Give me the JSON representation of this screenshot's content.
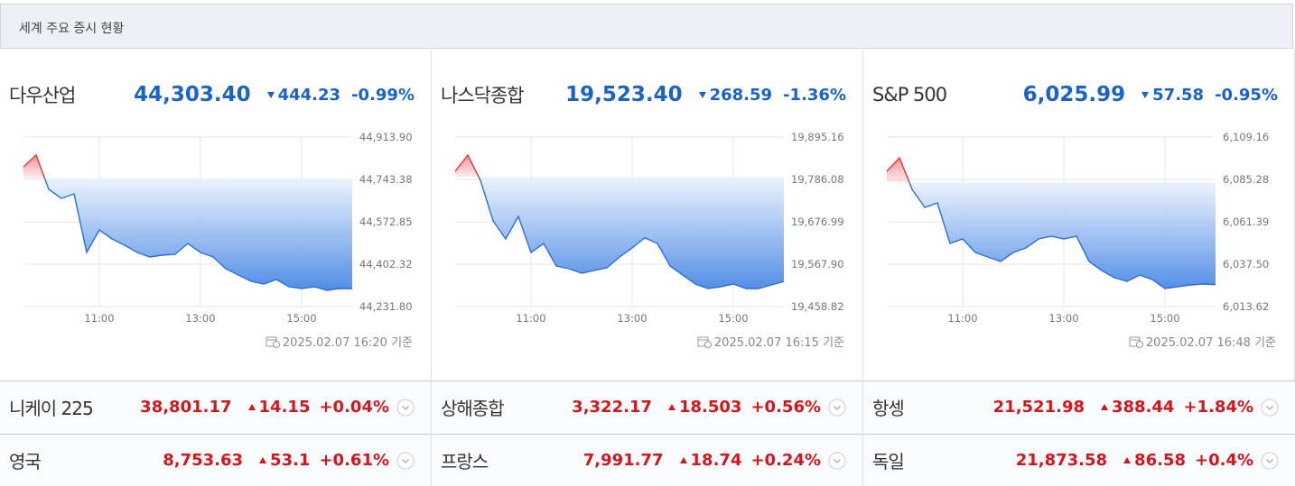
{
  "header": {
    "title": "세계 주요 증시 현황"
  },
  "chart_data": [
    {
      "type": "line",
      "title": "다우산업",
      "last": 44303.4,
      "last_label": "44,303.40",
      "change": -444.23,
      "change_label": "444.23",
      "change_pct_label": "-0.99%",
      "timestamp": "2025.02.07 16:20 기준",
      "x": [
        "09:30",
        "09:45",
        "10:00",
        "10:15",
        "10:30",
        "10:45",
        "11:00",
        "11:15",
        "11:30",
        "11:45",
        "12:00",
        "12:15",
        "12:30",
        "12:45",
        "13:00",
        "13:15",
        "13:30",
        "13:45",
        "14:00",
        "14:15",
        "14:30",
        "14:45",
        "15:00",
        "15:15",
        "15:30",
        "15:45",
        "16:00"
      ],
      "series": [
        {
          "color": "#2a6fdc",
          "above_color": "#e8343a",
          "values": [
            44794.2,
            44841.3,
            44703.5,
            44667.2,
            44685.3,
            44449.5,
            44540.2,
            44503.9,
            44478.5,
            44449.5,
            44431.4,
            44438.6,
            44442.3,
            44485.8,
            44449.5,
            44431.4,
            44384.2,
            44358.8,
            44333.4,
            44322.5,
            44340.7,
            44311.7,
            44304.4,
            44311.7,
            44297.1,
            44304.4,
            44303.4
          ]
        }
      ],
      "xlim": [
        "09:30",
        "16:00"
      ],
      "xticks": [
        "11:00",
        "13:00",
        "15:00"
      ],
      "ylim": [
        44231.8,
        44913.9
      ],
      "yticks": [
        {
          "value": 44913.9,
          "label": "44,913.90"
        },
        {
          "value": 44743.38,
          "label": "44,743.38"
        },
        {
          "value": 44572.85,
          "label": "44,572.85"
        },
        {
          "value": 44402.32,
          "label": "44,402.32"
        },
        {
          "value": 44231.8,
          "label": "44,231.80"
        }
      ],
      "grid": true
    },
    {
      "type": "line",
      "title": "나스닥종합",
      "last": 19523.4,
      "last_label": "19,523.40",
      "change": -268.59,
      "change_label": "268.59",
      "change_pct_label": "-1.36%",
      "timestamp": "2025.02.07 16:15 기준",
      "x": [
        "09:30",
        "09:45",
        "10:00",
        "10:15",
        "10:30",
        "10:45",
        "11:00",
        "11:15",
        "11:30",
        "11:45",
        "12:00",
        "12:15",
        "12:30",
        "12:45",
        "13:00",
        "13:15",
        "13:30",
        "13:45",
        "14:00",
        "14:15",
        "14:30",
        "14:45",
        "15:00",
        "15:15",
        "15:30",
        "15:45",
        "16:00"
      ],
      "series": [
        {
          "color": "#2a6fdc",
          "above_color": "#e8343a",
          "values": [
            19807.0,
            19848.7,
            19783.8,
            19679.3,
            19632.9,
            19690.9,
            19598.1,
            19621.3,
            19563.3,
            19556.3,
            19544.7,
            19551.7,
            19558.6,
            19586.3,
            19609.7,
            19635.9,
            19621.3,
            19563.3,
            19540.1,
            19516.9,
            19505.2,
            19509.9,
            19516.9,
            19505.2,
            19505.2,
            19514.5,
            19523.4
          ]
        }
      ],
      "xlim": [
        "09:30",
        "16:00"
      ],
      "xticks": [
        "11:00",
        "13:00",
        "15:00"
      ],
      "ylim": [
        19458.82,
        19895.16
      ],
      "yticks": [
        {
          "value": 19895.16,
          "label": "19,895.16"
        },
        {
          "value": 19786.08,
          "label": "19,786.08"
        },
        {
          "value": 19676.99,
          "label": "19,676.99"
        },
        {
          "value": 19567.9,
          "label": "19,567.90"
        },
        {
          "value": 19458.82,
          "label": "19,458.82"
        }
      ],
      "grid": true
    },
    {
      "type": "line",
      "title": "S&P 500",
      "last": 6025.99,
      "last_label": "6,025.99",
      "change": -57.58,
      "change_label": "57.58",
      "change_pct_label": "-0.95%",
      "timestamp": "2025.02.07 16:48 기준",
      "x": [
        "09:30",
        "09:45",
        "10:00",
        "10:15",
        "10:30",
        "10:45",
        "11:00",
        "11:15",
        "11:30",
        "11:45",
        "12:00",
        "12:15",
        "12:30",
        "12:45",
        "13:00",
        "13:15",
        "13:30",
        "13:45",
        "14:00",
        "14:15",
        "14:30",
        "14:45",
        "15:00",
        "15:15",
        "15:30",
        "15:45",
        "16:00"
      ],
      "series": [
        {
          "color": "#2a6fdc",
          "above_color": "#e8343a",
          "values": [
            6089.85,
            6097.47,
            6079.68,
            6069.52,
            6072.06,
            6049.19,
            6051.73,
            6044.11,
            6041.57,
            6039.03,
            6044.11,
            6046.65,
            6051.73,
            6053.26,
            6051.73,
            6053.26,
            6039.03,
            6033.95,
            6029.88,
            6027.85,
            6031.41,
            6028.86,
            6023.78,
            6024.8,
            6025.82,
            6026.32,
            6025.99
          ]
        }
      ],
      "xlim": [
        "09:30",
        "16:00"
      ],
      "xticks": [
        "11:00",
        "13:00",
        "15:00"
      ],
      "ylim": [
        6013.62,
        6109.16
      ],
      "yticks": [
        {
          "value": 6109.16,
          "label": "6,109.16"
        },
        {
          "value": 6085.28,
          "label": "6,085.28"
        },
        {
          "value": 6061.39,
          "label": "6,061.39"
        },
        {
          "value": 6037.5,
          "label": "6,037.50"
        },
        {
          "value": 6013.62,
          "label": "6,013.62"
        }
      ],
      "grid": true
    }
  ],
  "markets": [
    {
      "name": "니케이 225",
      "value_label": "38,801.17",
      "change_label": "14.15",
      "pct_label": "+0.04%",
      "direction": "up"
    },
    {
      "name": "상해종합",
      "value_label": "3,322.17",
      "change_label": "18.503",
      "pct_label": "+0.56%",
      "direction": "up"
    },
    {
      "name": "항셍",
      "value_label": "21,521.98",
      "change_label": "388.44",
      "pct_label": "+1.84%",
      "direction": "up"
    },
    {
      "name": "영국",
      "value_label": "8,753.63",
      "change_label": "53.1",
      "pct_label": "+0.61%",
      "direction": "up"
    },
    {
      "name": "프랑스",
      "value_label": "7,991.77",
      "change_label": "18.74",
      "pct_label": "+0.24%",
      "direction": "up"
    },
    {
      "name": "독일",
      "value_label": "21,873.58",
      "change_label": "86.58",
      "pct_label": "+0.4%",
      "direction": "up"
    }
  ]
}
